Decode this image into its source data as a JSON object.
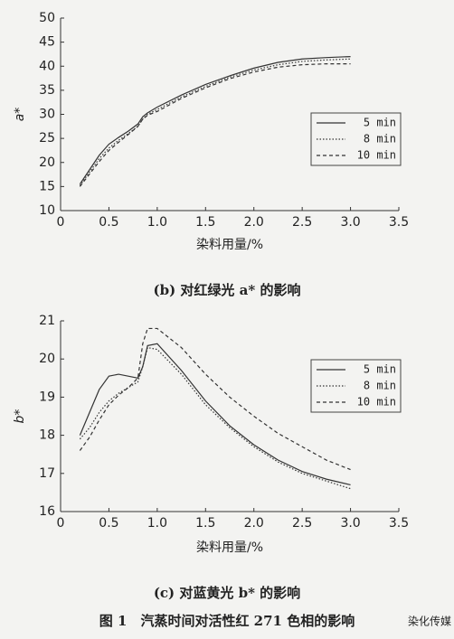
{
  "chart_data": [
    {
      "type": "line",
      "title": "(b) 对红绿光 a* 的影响",
      "xlabel": "染料用量/%",
      "ylabel": "a*",
      "x": [
        0.2,
        0.3,
        0.4,
        0.5,
        0.6,
        0.7,
        0.8,
        0.85,
        0.9,
        1.0,
        1.25,
        1.5,
        1.75,
        2.0,
        2.25,
        2.5,
        2.75,
        3.0
      ],
      "series": [
        {
          "name": "5 min",
          "color": "#333333",
          "dash": "solid",
          "values": [
            15.5,
            18.5,
            21.5,
            23.8,
            25.2,
            26.5,
            28,
            29.5,
            30.3,
            31.5,
            34,
            36.2,
            38,
            39.6,
            40.8,
            41.5,
            41.8,
            42
          ]
        },
        {
          "name": "8 min",
          "color": "#333333",
          "dash": "dotted",
          "values": [
            15.2,
            18,
            20.8,
            23,
            24.6,
            26,
            27.5,
            29,
            30,
            31,
            33.6,
            35.8,
            37.7,
            39.2,
            40.3,
            41,
            41.3,
            41.5
          ]
        },
        {
          "name": "10 min",
          "color": "#333333",
          "dash": "dashed",
          "values": [
            15,
            17.6,
            20.2,
            22.5,
            24.2,
            25.8,
            27.5,
            29,
            29.8,
            30.6,
            33.3,
            35.5,
            37.4,
            38.8,
            39.8,
            40.3,
            40.5,
            40.5
          ]
        }
      ],
      "xlim": [
        0,
        3.5
      ],
      "xticks": [
        0,
        0.5,
        {
          "value": 1,
          "label": "1.0"
        },
        1.5,
        {
          "value": 2,
          "label": "2.0"
        },
        2.5,
        {
          "value": 3,
          "label": "3.0"
        },
        3.5
      ],
      "ylim": [
        10,
        50
      ],
      "yticks": [
        10,
        15,
        20,
        25,
        30,
        35,
        40,
        45,
        50
      ],
      "grid": false,
      "legend": "right"
    },
    {
      "type": "line",
      "title": "(c) 对蓝黄光 b* 的影响",
      "xlabel": "染料用量/%",
      "ylabel": "b*",
      "x": [
        0.2,
        0.3,
        0.4,
        0.5,
        0.6,
        0.7,
        0.8,
        0.85,
        0.9,
        1.0,
        1.25,
        1.5,
        1.75,
        2.0,
        2.25,
        2.5,
        2.75,
        3.0
      ],
      "series": [
        {
          "name": "5 min",
          "color": "#333333",
          "dash": "solid",
          "values": [
            18,
            18.6,
            19.2,
            19.55,
            19.6,
            19.55,
            19.5,
            19.8,
            20.35,
            20.4,
            19.7,
            18.9,
            18.25,
            17.75,
            17.35,
            17.05,
            16.85,
            16.7
          ]
        },
        {
          "name": "8 min",
          "color": "#333333",
          "dash": "dotted",
          "values": [
            17.9,
            18.2,
            18.6,
            18.9,
            19.1,
            19.25,
            19.4,
            19.8,
            20.3,
            20.25,
            19.6,
            18.8,
            18.2,
            17.7,
            17.3,
            17,
            16.8,
            16.6
          ]
        },
        {
          "name": "10 min",
          "color": "#333333",
          "dash": "dashed",
          "values": [
            17.6,
            17.95,
            18.4,
            18.8,
            19.05,
            19.25,
            19.5,
            20.4,
            20.8,
            20.8,
            20.3,
            19.6,
            19,
            18.5,
            18.05,
            17.7,
            17.35,
            17.1
          ]
        }
      ],
      "xlim": [
        0,
        3.5
      ],
      "xticks": [
        0,
        0.5,
        {
          "value": 1,
          "label": "1.0"
        },
        1.5,
        {
          "value": 2,
          "label": "2.0"
        },
        2.5,
        {
          "value": 3,
          "label": "3.0"
        },
        3.5
      ],
      "ylim": [
        16,
        21
      ],
      "yticks": [
        16,
        17,
        18,
        19,
        20,
        21
      ],
      "grid": false,
      "legend": "right"
    }
  ],
  "figure_caption": "图 1　汽蒸时间对活性红 271 色相的影响",
  "watermark": "染化传媒"
}
